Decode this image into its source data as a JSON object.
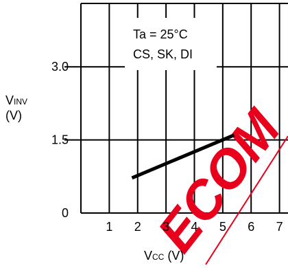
{
  "chart_data": {
    "type": "line",
    "title": "",
    "xlabel": {
      "main": "V",
      "sub": "CC",
      "unit": " (V)"
    },
    "ylabel": {
      "main": "V",
      "sub": "INV",
      "unit": "(V)"
    },
    "xlim": [
      0,
      7.3
    ],
    "ylim": [
      0,
      4.3
    ],
    "xticks": [
      1,
      2,
      3,
      4,
      5,
      6,
      7
    ],
    "xtick_labels": [
      "1",
      "2",
      "3",
      "4",
      "5",
      "6",
      "7"
    ],
    "yticks": [
      0,
      1.5,
      3.0
    ],
    "ytick_labels": [
      "0",
      "1.5",
      "3.0"
    ],
    "grid": true,
    "annotation": [
      "Ta = 25°C",
      "CS, SK, DI"
    ],
    "series": [
      {
        "x": [
          1.8,
          5.4
        ],
        "y": [
          0.72,
          1.6
        ]
      }
    ],
    "watermark": "ECOM",
    "colors": {
      "line": "#000000",
      "grid": "#000000",
      "watermark": "#e8001c"
    }
  }
}
